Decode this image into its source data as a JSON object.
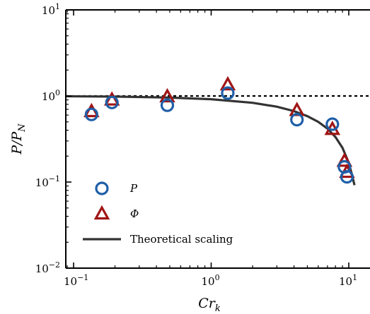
{
  "chart_data": {
    "type": "scatter",
    "xlabel_base": "Cr",
    "xlabel_sub": "k",
    "ylabel": "P/P",
    "ylabel_sub": "N",
    "x_scale": "log",
    "y_scale": "log",
    "xlim": [
      0.08,
      14
    ],
    "ylim": [
      0.01,
      10
    ],
    "x_ticks": [
      {
        "value": 0.1,
        "base": "10",
        "exp": "−1"
      },
      {
        "value": 1,
        "base": "10",
        "exp": "0"
      },
      {
        "value": 10,
        "base": "10",
        "exp": "1"
      }
    ],
    "y_ticks": [
      {
        "value": 0.01,
        "base": "10",
        "exp": "−2"
      },
      {
        "value": 0.1,
        "base": "10",
        "exp": "−1"
      },
      {
        "value": 1,
        "base": "10",
        "exp": "0"
      },
      {
        "value": 10,
        "base": "10",
        "exp": "1"
      }
    ],
    "reference_line": {
      "y": 1.0,
      "style": "dotted",
      "color": "#000000"
    },
    "series": [
      {
        "name": "P",
        "marker": "circle",
        "color": "#1f5fa8",
        "points": [
          {
            "x": 0.135,
            "y": 0.61
          },
          {
            "x": 0.19,
            "y": 0.84
          },
          {
            "x": 0.48,
            "y": 0.78
          },
          {
            "x": 1.32,
            "y": 1.08
          },
          {
            "x": 4.2,
            "y": 0.53
          },
          {
            "x": 7.6,
            "y": 0.47
          },
          {
            "x": 9.3,
            "y": 0.15
          },
          {
            "x": 9.7,
            "y": 0.115
          }
        ]
      },
      {
        "name": "Φ",
        "marker": "triangle",
        "color": "#a01515",
        "points": [
          {
            "x": 0.135,
            "y": 0.66
          },
          {
            "x": 0.19,
            "y": 0.9
          },
          {
            "x": 0.48,
            "y": 0.98
          },
          {
            "x": 1.32,
            "y": 1.35
          },
          {
            "x": 4.2,
            "y": 0.68
          },
          {
            "x": 7.6,
            "y": 0.41
          },
          {
            "x": 9.3,
            "y": 0.175
          },
          {
            "x": 9.7,
            "y": 0.13
          }
        ]
      },
      {
        "name": "Theoretical scaling",
        "marker": "line",
        "color": "#333333",
        "points": [
          {
            "x": 0.08,
            "y": 0.993
          },
          {
            "x": 0.2,
            "y": 0.983
          },
          {
            "x": 0.5,
            "y": 0.958
          },
          {
            "x": 1.0,
            "y": 0.917
          },
          {
            "x": 2.0,
            "y": 0.833
          },
          {
            "x": 3.0,
            "y": 0.75
          },
          {
            "x": 4.0,
            "y": 0.667
          },
          {
            "x": 5.0,
            "y": 0.583
          },
          {
            "x": 6.0,
            "y": 0.5
          },
          {
            "x": 7.0,
            "y": 0.417
          },
          {
            "x": 8.0,
            "y": 0.333
          },
          {
            "x": 9.0,
            "y": 0.25
          },
          {
            "x": 10.0,
            "y": 0.167
          },
          {
            "x": 10.5,
            "y": 0.125
          },
          {
            "x": 11.0,
            "y": 0.092
          }
        ]
      }
    ],
    "legend_position": "lower-left"
  }
}
